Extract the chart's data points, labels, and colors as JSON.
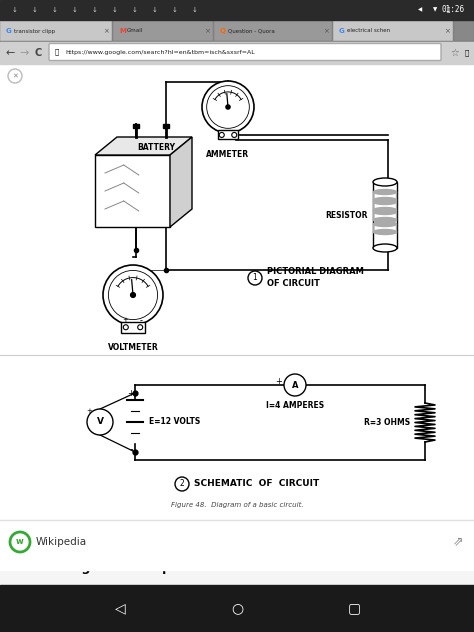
{
  "bg_color": "#f5f5f5",
  "content_bg": "#ffffff",
  "status_bar_color": "#333333",
  "tab_bar_color": "#999999",
  "title": "Circuit diagram - Wikipedia",
  "url": "https://www.google.com/search?hl=en&tbm=isch&sxsrf=AL",
  "figure_caption": "Figure 48.  Diagram of a basic circuit.",
  "pictorial_label1": "PICTORIAL DIAGRAM",
  "pictorial_label2": "OF CIRCUIT",
  "schematic_label": "SCHEMATIC  OF  CIRCUIT",
  "battery_label": "BATTERY",
  "ammeter_label": "AMMETER",
  "resistor_label": "RESISTOR",
  "voltmeter_label": "VOLTMETER",
  "amperes_label": "I=4 AMPERES",
  "volts_label": "E=12 VOLTS",
  "ohms_label": "R=3 OHMS",
  "wikipedia_text": "Wikipedia",
  "figsize": [
    4.74,
    6.32
  ],
  "dpi": 100
}
